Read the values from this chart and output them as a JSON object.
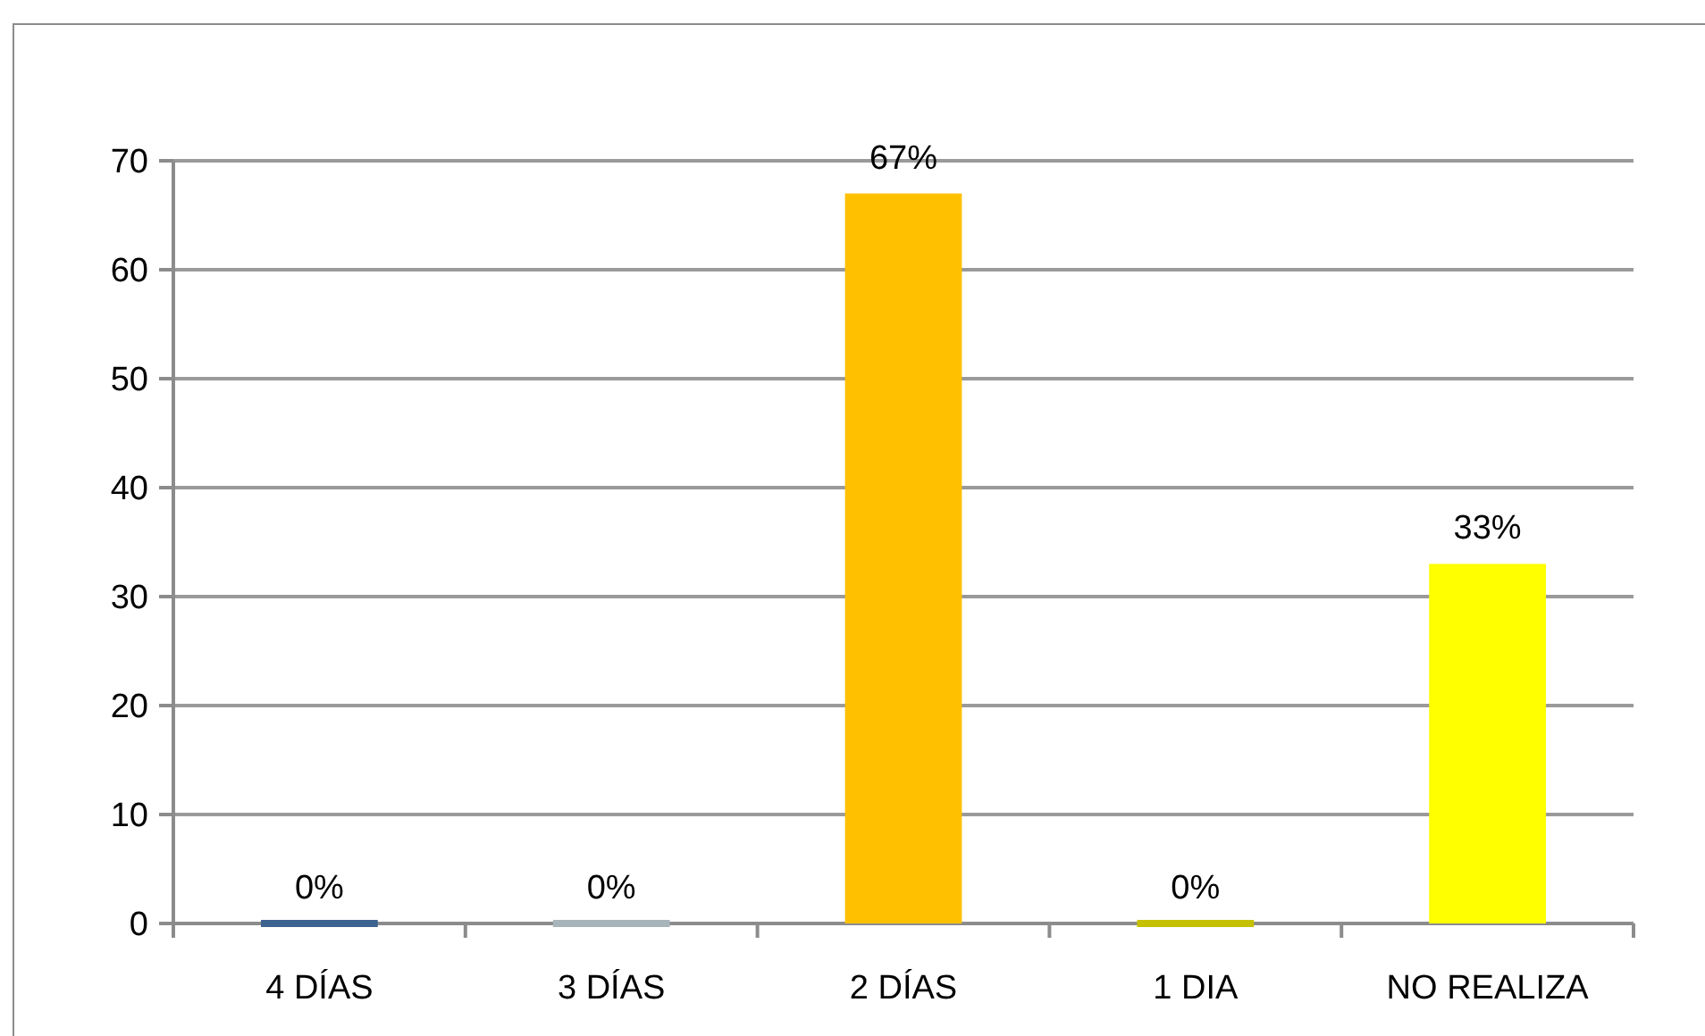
{
  "chart_data": {
    "type": "bar",
    "categories": [
      "4 DÍAS",
      "3 DÍAS",
      "2 DÍAS",
      "1 DIA",
      "NO REALIZA"
    ],
    "values": [
      0,
      0,
      67,
      0,
      33
    ],
    "colors": [
      "#3c6290",
      "#a7b4b9",
      "#ffc000",
      "#c5c000",
      "#ffff00"
    ],
    "value_labels": [
      "0%",
      "0%",
      "67%",
      "0%",
      "33%"
    ],
    "ylim": [
      0,
      70
    ],
    "yticks": [
      0,
      10,
      20,
      30,
      40,
      50,
      60,
      70
    ],
    "grid": "y"
  }
}
